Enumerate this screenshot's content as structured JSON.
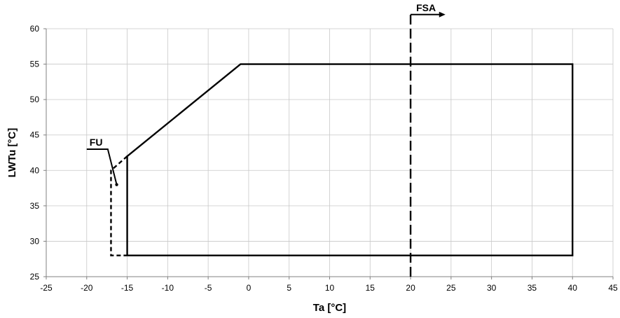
{
  "chart_data": {
    "type": "line",
    "title": "",
    "xlabel": "Ta [°C]",
    "ylabel": "LWTu [°C]",
    "xlim": [
      -25,
      45
    ],
    "ylim": [
      25,
      60
    ],
    "x_ticks": [
      -25,
      -20,
      -15,
      -10,
      -5,
      0,
      5,
      10,
      15,
      20,
      25,
      30,
      35,
      40,
      45
    ],
    "y_ticks": [
      25,
      30,
      35,
      40,
      45,
      50,
      55,
      60
    ],
    "grid": true,
    "legend": "none",
    "series": [
      {
        "style": "solid",
        "color": "#000000",
        "points": [
          [
            -15,
            28
          ],
          [
            40,
            28
          ],
          [
            40,
            55
          ],
          [
            -1,
            55
          ],
          [
            -15,
            42
          ],
          [
            -15,
            28
          ]
        ]
      },
      {
        "style": "dashed",
        "color": "#000000",
        "points": [
          [
            -15,
            42
          ],
          [
            -17,
            40
          ],
          [
            -17,
            28
          ],
          [
            -15,
            28
          ]
        ]
      },
      {
        "style": "long-dash",
        "color": "#000000",
        "points": [
          [
            20,
            25
          ],
          [
            20,
            62
          ]
        ]
      }
    ],
    "annotations": [
      {
        "text": "FU",
        "leader": [
          [
            -20,
            43
          ],
          [
            -17.4,
            43
          ],
          [
            -16.3,
            38
          ]
        ],
        "marker": [
          -16.3,
          38
        ]
      },
      {
        "text": "FSA",
        "arrow": [
          [
            20,
            62
          ],
          [
            24.3,
            62
          ]
        ]
      }
    ]
  }
}
